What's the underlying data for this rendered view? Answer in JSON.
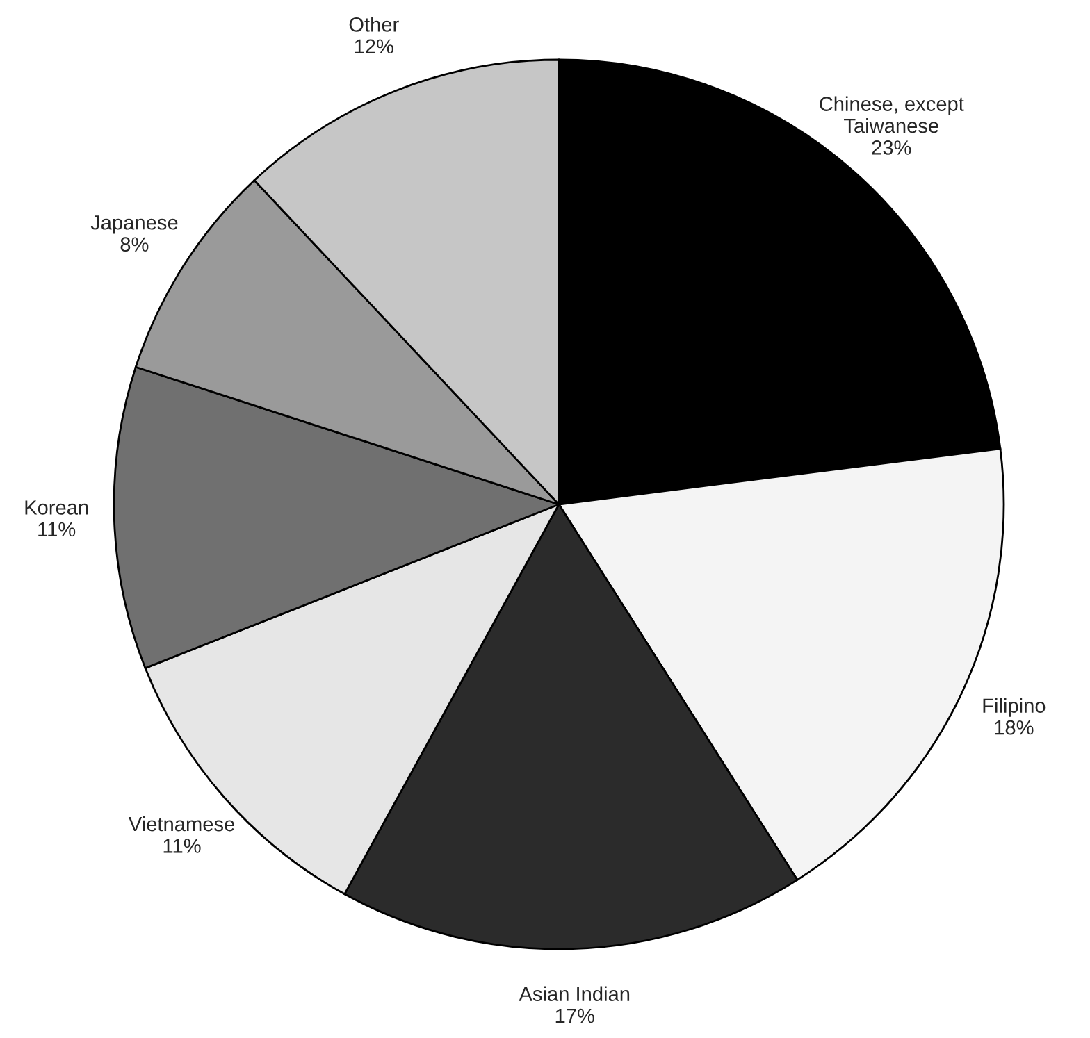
{
  "chart_data": {
    "type": "pie",
    "categories": [
      "Chinese, except\nTaiwanese",
      "Filipino",
      "Asian Indian",
      "Vietnamese",
      "Korean",
      "Japanese",
      "Other"
    ],
    "values": [
      23,
      18,
      17,
      11,
      11,
      8,
      12
    ],
    "value_labels": [
      "23%",
      "18%",
      "17%",
      "11%",
      "11%",
      "8%",
      "12%"
    ],
    "colors": [
      "#000000",
      "#f4f4f4",
      "#2b2b2b",
      "#e6e6e6",
      "#707070",
      "#9a9a9a",
      "#c6c6c6"
    ],
    "legend": false
  }
}
